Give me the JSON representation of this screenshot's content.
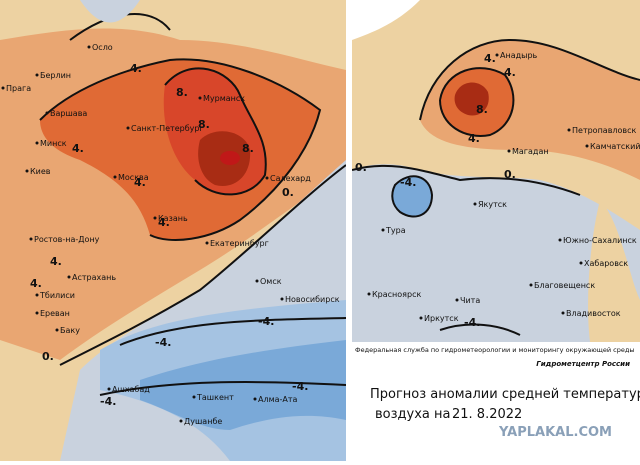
{
  "maps": [
    {
      "cities": [
        "Осло",
        "Берлин",
        "Прага",
        "Варшава",
        "Минск",
        "Киев",
        "Москва",
        "Санкт-Петербург",
        "Мурманск",
        "Казань",
        "Ростов-на-Дону",
        "Астрахань",
        "Тбилиси",
        "Ереван",
        "Баку",
        "Ашхабад",
        "Ташкент",
        "Алма-Ата",
        "Душанбе",
        "Омск",
        "Новосибирск",
        "Екатеринбург",
        "Салехард"
      ],
      "contour_labels": [
        "4.",
        "8.",
        "8.",
        "8.",
        "4.",
        "4.",
        "4.",
        "4.",
        "4.",
        "0.",
        "0.",
        "-4.",
        "-4.",
        "-4.",
        "-4."
      ]
    },
    {
      "cities": [
        "Анадырь",
        "Петропавловск",
        "Камчатский",
        "Магадан",
        "Якутск",
        "Тура",
        "Южно-Сахалинск",
        "Хабаровск",
        "Благовещенск",
        "Владивосток",
        "Красноярск",
        "Иркутск",
        "Чита"
      ],
      "contour_labels": [
        "4.",
        "4.",
        "8.",
        "4.",
        "0.",
        "-4.",
        "0.",
        "-4."
      ]
    }
  ],
  "info": {
    "agency": "Федеральная служба по гидрометеорологии и мониторингу окружающей среды",
    "center": "Гидрометцентр России",
    "title_line1": "Прогноз аномалии средней температуры",
    "title_line2": "воздуха на",
    "date": "21. 8.2022"
  },
  "watermark": "YAPLAKAL.COM"
}
